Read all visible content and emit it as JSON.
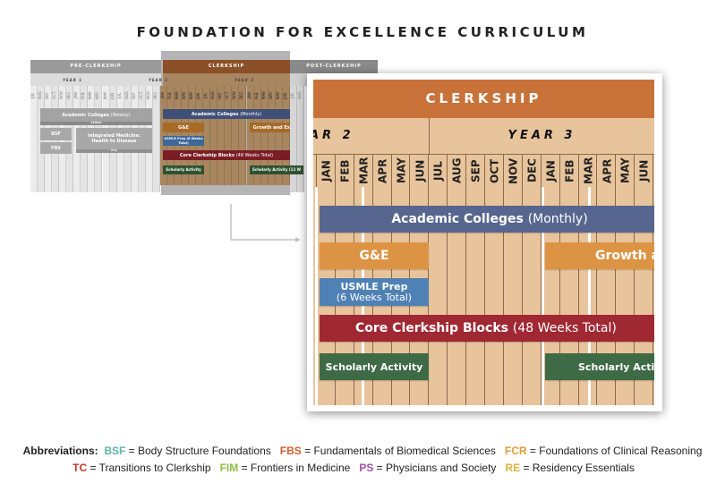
{
  "title": "FOUNDATION FOR EXCELLENCE CURRICULUM",
  "thumbnail": {
    "phases": [
      "PRE-CLERKSHIP",
      "CLERKSHIP",
      "POST-CLERKSHIP"
    ],
    "years": [
      "YEAR 1",
      "YEAR 2",
      "YEAR 3"
    ],
    "months": [
      "JUL",
      "AUG",
      "SEP",
      "OCT",
      "NOV",
      "DEC",
      "JAN",
      "FEB",
      "MAR",
      "APR",
      "MAY",
      "JUN",
      "JUL",
      "AUG",
      "SEP",
      "OCT",
      "NOV",
      "DEC",
      "JAN",
      "FEB",
      "MAR",
      "APR",
      "MAY",
      "JUN",
      "JUL",
      "AUG",
      "SEP",
      "OCT",
      "NOV",
      "DEC",
      "JAN",
      "FEB",
      "MAR",
      "APR",
      "MAY",
      "JUN",
      "JUL",
      "AUG"
    ],
    "academic_weekly": "Academic Colleges",
    "academic_weekly_note": "(Weekly)",
    "strive": "STRIVE",
    "bsf": "BSF",
    "fbs": "FBS",
    "integrated": "Integrated Medicine: Health to Disease",
    "fcr": "FCR",
    "academic_monthly": "Academic Colleges",
    "academic_monthly_note": "(Monthly)",
    "ge": "G&E",
    "growth": "Growth and Ex",
    "usmle": "USMLE Prep (6 Weeks Total)",
    "core": "Core Clerkship Blocks",
    "core_note": "(48 Weeks Total)",
    "scholarly": "Scholarly Activity",
    "scholarly2": "Scholarly Activity (12 W"
  },
  "detail": {
    "phase": "CLERKSHIP",
    "year_left": "AR 2",
    "year_right": "YEAR 3",
    "months": [
      "JAN",
      "FEB",
      "MAR",
      "APR",
      "MAY",
      "JUN",
      "JUL",
      "AUG",
      "SEP",
      "OCT",
      "NOV",
      "DEC",
      "JAN",
      "FEB",
      "MAR",
      "APR",
      "MAY",
      "JUN"
    ],
    "academic": "Academic Colleges",
    "academic_note": "(Monthly)",
    "ge": "G&E",
    "growth": "Growth a",
    "usmle": "USMLE Prep",
    "usmle_note": "(6 Weeks Total)",
    "core": "Core Clerkship Blocks",
    "core_note": "(48 Weeks Total)",
    "scholarly": "Scholarly Activity",
    "scholarly2": "Scholarly Activi"
  },
  "legend": {
    "label": "Abbreviations:",
    "items": [
      {
        "abbr": "BSF",
        "text": "= Body Structure Foundations",
        "color": "#5fb3a8"
      },
      {
        "abbr": "FBS",
        "text": "= Fundamentals of Biomedical Sciences",
        "color": "#d4602e"
      },
      {
        "abbr": "FCR",
        "text": "= Foundations of Clinical Reasoning",
        "color": "#e39a3a"
      },
      {
        "abbr": "TC",
        "text": "= Transitions to Clerkship",
        "color": "#c83a2a"
      },
      {
        "abbr": "FIM",
        "text": "= Frontiers in Medicine",
        "color": "#8fbf45"
      },
      {
        "abbr": "PS",
        "text": "= Physicians and Society",
        "color": "#a04fa8"
      },
      {
        "abbr": "RE",
        "text": "= Residency Essentials",
        "color": "#e0b43a"
      }
    ]
  },
  "colors": {
    "clerkship": "#c8723a",
    "tan": "#e8c49c",
    "academic": "#56668e",
    "ge": "#dc9444",
    "usmle": "#4f81b5",
    "core": "#a02833",
    "scholarly": "#3e6b45"
  }
}
